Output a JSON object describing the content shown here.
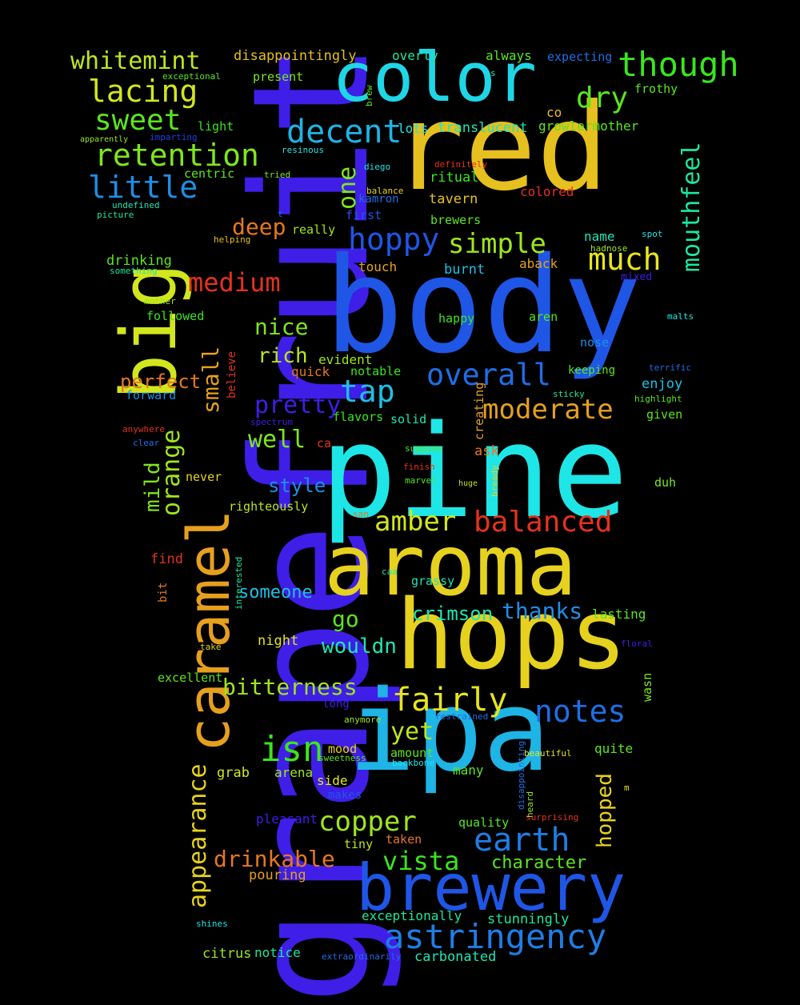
{
  "background": "#000000",
  "words": [
    {
      "text": "grapefruit",
      "color": "#3f1ee8",
      "vertical": true
    },
    {
      "text": "body",
      "color": "#1f56e6",
      "vertical": false
    },
    {
      "text": "pine",
      "color": "#1ee6e6",
      "vertical": false
    },
    {
      "text": "red",
      "color": "#e6c01e",
      "vertical": false
    },
    {
      "text": "ipa",
      "color": "#1eb4e6",
      "vertical": false
    },
    {
      "text": "hops",
      "color": "#e6d21e",
      "vertical": false
    },
    {
      "text": "aroma",
      "color": "#e6d21e",
      "vertical": false
    },
    {
      "text": "color",
      "color": "#1ed6e6",
      "vertical": false
    },
    {
      "text": "big",
      "color": "#d2e61e",
      "vertical": true
    },
    {
      "text": "caramel",
      "color": "#e6a01e",
      "vertical": true
    },
    {
      "text": "brewery",
      "color": "#1f56e6",
      "vertical": false
    },
    {
      "text": "astringency",
      "color": "#1f7ee6",
      "vertical": false
    },
    {
      "text": "though",
      "color": "#3ae61e",
      "vertical": false
    },
    {
      "text": "retention",
      "color": "#7ee61e",
      "vertical": false
    },
    {
      "text": "decent",
      "color": "#1eb4e6",
      "vertical": false
    },
    {
      "text": "lacing",
      "color": "#d2e61e",
      "vertical": false
    },
    {
      "text": "whitemint",
      "color": "#bee61e",
      "vertical": false
    },
    {
      "text": "sweet",
      "color": "#5ae61e",
      "vertical": false
    },
    {
      "text": "little",
      "color": "#1f8ee6",
      "vertical": false
    },
    {
      "text": "dry",
      "color": "#5ae61e",
      "vertical": false
    },
    {
      "text": "hoppy",
      "color": "#1f56e6",
      "vertical": false
    },
    {
      "text": "simple",
      "color": "#9ee61e",
      "vertical": false
    },
    {
      "text": "much",
      "color": "#e6e61e",
      "vertical": false
    },
    {
      "text": "medium",
      "color": "#e6321e",
      "vertical": false
    },
    {
      "text": "mouthfeel",
      "color": "#1ee69e",
      "vertical": true
    },
    {
      "text": "overall",
      "color": "#1f6ee6",
      "vertical": false
    },
    {
      "text": "tap",
      "color": "#1ec0e6",
      "vertical": false
    },
    {
      "text": "moderate",
      "color": "#e6a01e",
      "vertical": false
    },
    {
      "text": "pretty",
      "color": "#3f1ee8",
      "vertical": false
    },
    {
      "text": "nice",
      "color": "#7ee61e",
      "vertical": false
    },
    {
      "text": "rich",
      "color": "#bee61e",
      "vertical": false
    },
    {
      "text": "perfect",
      "color": "#e6781e",
      "vertical": false
    },
    {
      "text": "deep",
      "color": "#e6781e",
      "vertical": false
    },
    {
      "text": "one",
      "color": "#7ee61e",
      "vertical": true
    },
    {
      "text": "small",
      "color": "#e6a01e",
      "vertical": true
    },
    {
      "text": "orange",
      "color": "#9ee61e",
      "vertical": true
    },
    {
      "text": "mild",
      "color": "#7ee61e",
      "vertical": true
    },
    {
      "text": "well",
      "color": "#7ee61e",
      "vertical": false
    },
    {
      "text": "style",
      "color": "#1f8ee6",
      "vertical": false
    },
    {
      "text": "amber",
      "color": "#d2e61e",
      "vertical": false
    },
    {
      "text": "balanced",
      "color": "#e6321e",
      "vertical": false
    },
    {
      "text": "appearance",
      "color": "#e6d21e",
      "vertical": true
    },
    {
      "text": "someone",
      "color": "#1ec0e6",
      "vertical": false
    },
    {
      "text": "go",
      "color": "#5ae61e",
      "vertical": false
    },
    {
      "text": "crimson",
      "color": "#1ee6b4",
      "vertical": false
    },
    {
      "text": "thanks",
      "color": "#1f8ee6",
      "vertical": false
    },
    {
      "text": "wouldn",
      "color": "#1ee6b4",
      "vertical": false
    },
    {
      "text": "bitterness",
      "color": "#9ee61e",
      "vertical": false
    },
    {
      "text": "fairly",
      "color": "#e6e61e",
      "vertical": false
    },
    {
      "text": "notes",
      "color": "#1f6ee6",
      "vertical": false
    },
    {
      "text": "yet",
      "color": "#bee61e",
      "vertical": false
    },
    {
      "text": "isn",
      "color": "#3ae61e",
      "vertical": false
    },
    {
      "text": "copper",
      "color": "#9ee61e",
      "vertical": false
    },
    {
      "text": "earth",
      "color": "#1f7ee6",
      "vertical": false
    },
    {
      "text": "hopped",
      "color": "#e6d21e",
      "vertical": true
    },
    {
      "text": "drinkable",
      "color": "#e6781e",
      "vertical": false
    },
    {
      "text": "vista",
      "color": "#3ae61e",
      "vertical": false
    },
    {
      "text": "character",
      "color": "#5ae61e",
      "vertical": false
    },
    {
      "text": "disappointingly",
      "color": "#e6c01e",
      "vertical": false
    },
    {
      "text": "overly",
      "color": "#1ee69e",
      "vertical": false
    },
    {
      "text": "always",
      "color": "#5ae61e",
      "vertical": false
    },
    {
      "text": "expecting",
      "color": "#1f6ee6",
      "vertical": false
    },
    {
      "text": "present",
      "color": "#7ee61e",
      "vertical": false
    },
    {
      "text": "exceptional",
      "color": "#5ae61e",
      "vertical": false
    },
    {
      "text": "brew",
      "color": "#5ae61e",
      "vertical": true
    },
    {
      "text": "s",
      "color": "#1ee6b4",
      "vertical": false
    },
    {
      "text": "frothy",
      "color": "#5ae61e",
      "vertical": false
    },
    {
      "text": "co",
      "color": "#e6c01e",
      "vertical": false
    },
    {
      "text": "light",
      "color": "#3ae61e",
      "vertical": false
    },
    {
      "text": "lots",
      "color": "#1ee6e6",
      "vertical": false
    },
    {
      "text": "translucent",
      "color": "#1ee6b4",
      "vertical": false
    },
    {
      "text": "growlermother",
      "color": "#5ae61e",
      "vertical": false
    },
    {
      "text": "apparently",
      "color": "#9ee61e",
      "vertical": false
    },
    {
      "text": "imparting",
      "color": "#1f3ee6",
      "vertical": false
    },
    {
      "text": "resinous",
      "color": "#1ee6e6",
      "vertical": false
    },
    {
      "text": "centric",
      "color": "#5ae61e",
      "vertical": false
    },
    {
      "text": "tried",
      "color": "#7ee61e",
      "vertical": false
    },
    {
      "text": "diego",
      "color": "#1ee6e6",
      "vertical": false
    },
    {
      "text": "ritual",
      "color": "#3ae61e",
      "vertical": false
    },
    {
      "text": "definitely",
      "color": "#e6321e",
      "vertical": false
    },
    {
      "text": "undefined",
      "color": "#1ee6b4",
      "vertical": false
    },
    {
      "text": "balance",
      "color": "#e6d21e",
      "vertical": false
    },
    {
      "text": "kamron",
      "color": "#1f6ee6",
      "vertical": false
    },
    {
      "text": "colored",
      "color": "#e6321e",
      "vertical": false
    },
    {
      "text": "tavern",
      "color": "#e6c01e",
      "vertical": false
    },
    {
      "text": "picture",
      "color": "#1ee69e",
      "vertical": false
    },
    {
      "text": "t",
      "color": "#1f6ee6",
      "vertical": false
    },
    {
      "text": "first",
      "color": "#1f56e6",
      "vertical": false
    },
    {
      "text": "brewers",
      "color": "#5ae61e",
      "vertical": false
    },
    {
      "text": "really",
      "color": "#9ee61e",
      "vertical": false
    },
    {
      "text": "name",
      "color": "#1ee6b4",
      "vertical": false
    },
    {
      "text": "spot",
      "color": "#1ee6e6",
      "vertical": false
    },
    {
      "text": "helping",
      "color": "#e6c01e",
      "vertical": false
    },
    {
      "text": "hadnose",
      "color": "#9ee61e",
      "vertical": false
    },
    {
      "text": "drinking",
      "color": "#5ae61e",
      "vertical": false
    },
    {
      "text": "something",
      "color": "#1ee69e",
      "vertical": false
    },
    {
      "text": "touch",
      "color": "#e6a01e",
      "vertical": false
    },
    {
      "text": "burnt",
      "color": "#1ec0e6",
      "vertical": false
    },
    {
      "text": "aback",
      "color": "#e6a01e",
      "vertical": false
    },
    {
      "text": "mixed",
      "color": "#3f1ee8",
      "vertical": false
    },
    {
      "text": "mother",
      "color": "#9ee61e",
      "vertical": false
    },
    {
      "text": "followed",
      "color": "#3ae61e",
      "vertical": false
    },
    {
      "text": "happy",
      "color": "#3ae61e",
      "vertical": false
    },
    {
      "text": "aren",
      "color": "#5ae61e",
      "vertical": false
    },
    {
      "text": "malts",
      "color": "#1ee6e6",
      "vertical": false
    },
    {
      "text": "nose",
      "color": "#1f8ee6",
      "vertical": false
    },
    {
      "text": "evident",
      "color": "#9ee61e",
      "vertical": false
    },
    {
      "text": "quick",
      "color": "#e6781e",
      "vertical": false
    },
    {
      "text": "notable",
      "color": "#3ae61e",
      "vertical": false
    },
    {
      "text": "keeping",
      "color": "#5ae61e",
      "vertical": false
    },
    {
      "text": "terrific",
      "color": "#1f6ee6",
      "vertical": false
    },
    {
      "text": "believe",
      "color": "#e6321e",
      "vertical": true
    },
    {
      "text": "enjoy",
      "color": "#1ec0e6",
      "vertical": false
    },
    {
      "text": "forward",
      "color": "#1f8ee6",
      "vertical": false
    },
    {
      "text": "sticky",
      "color": "#1ee69e",
      "vertical": false
    },
    {
      "text": "highlight",
      "color": "#5ae61e",
      "vertical": false
    },
    {
      "text": "creating",
      "color": "#e6a01e",
      "vertical": true
    },
    {
      "text": "flavors",
      "color": "#3ae61e",
      "vertical": false
    },
    {
      "text": "solid",
      "color": "#1ee6b4",
      "vertical": false
    },
    {
      "text": "given",
      "color": "#5ae61e",
      "vertical": false
    },
    {
      "text": "anywhere",
      "color": "#e6321e",
      "vertical": false
    },
    {
      "text": "spectrum",
      "color": "#3f1ee8",
      "vertical": false
    },
    {
      "text": "clear",
      "color": "#1f6ee6",
      "vertical": false
    },
    {
      "text": "ca",
      "color": "#e6321e",
      "vertical": false
    },
    {
      "text": "suppose",
      "color": "#5ae61e",
      "vertical": false
    },
    {
      "text": "ask",
      "color": "#e6781e",
      "vertical": false
    },
    {
      "text": "finish",
      "color": "#e6321e",
      "vertical": false
    },
    {
      "text": "bready",
      "color": "#e6d21e",
      "vertical": true
    },
    {
      "text": "never",
      "color": "#e6d21e",
      "vertical": false
    },
    {
      "text": "marvel",
      "color": "#5ae61e",
      "vertical": false
    },
    {
      "text": "huge",
      "color": "#bee61e",
      "vertical": false
    },
    {
      "text": "duh",
      "color": "#7ee61e",
      "vertical": false
    },
    {
      "text": "righteously",
      "color": "#bee61e",
      "vertical": false
    },
    {
      "text": "san",
      "color": "#e6781e",
      "vertical": false
    },
    {
      "text": "find",
      "color": "#e6321e",
      "vertical": false
    },
    {
      "text": "interested",
      "color": "#1ee69e",
      "vertical": true
    },
    {
      "text": "caa",
      "color": "#1ee6b4",
      "vertical": false
    },
    {
      "text": "grassy",
      "color": "#1ee6b4",
      "vertical": false
    },
    {
      "text": "bit",
      "color": "#e6781e",
      "vertical": true
    },
    {
      "text": "lasting",
      "color": "#5ae61e",
      "vertical": false
    },
    {
      "text": "night",
      "color": "#e6e61e",
      "vertical": false
    },
    {
      "text": "take",
      "color": "#e6d21e",
      "vertical": false
    },
    {
      "text": "floral",
      "color": "#3f1ee8",
      "vertical": false
    },
    {
      "text": "excellent",
      "color": "#5ae61e",
      "vertical": false
    },
    {
      "text": "wasn",
      "color": "#7ee61e",
      "vertical": true
    },
    {
      "text": "long",
      "color": "#3f1ee8",
      "vertical": false
    },
    {
      "text": "anymore",
      "color": "#9ee61e",
      "vertical": false
    },
    {
      "text": "restrained",
      "color": "#1f6ee6",
      "vertical": false
    },
    {
      "text": "mood",
      "color": "#e6d21e",
      "vertical": false
    },
    {
      "text": "amount",
      "color": "#5ae61e",
      "vertical": false
    },
    {
      "text": "disappointing",
      "color": "#1f6ee6",
      "vertical": true
    },
    {
      "text": "beautiful",
      "color": "#e6e61e",
      "vertical": false
    },
    {
      "text": "quite",
      "color": "#5ae61e",
      "vertical": false
    },
    {
      "text": "sweetness",
      "color": "#5ae61e",
      "vertical": false
    },
    {
      "text": "backbone",
      "color": "#1ee6e6",
      "vertical": false
    },
    {
      "text": "grab",
      "color": "#d2e61e",
      "vertical": false
    },
    {
      "text": "arena",
      "color": "#9ee61e",
      "vertical": false
    },
    {
      "text": "many",
      "color": "#5ae61e",
      "vertical": false
    },
    {
      "text": "m",
      "color": "#e6e61e",
      "vertical": false
    },
    {
      "text": "side",
      "color": "#e6e61e",
      "vertical": false
    },
    {
      "text": "makes",
      "color": "#1f56e6",
      "vertical": false
    },
    {
      "text": "heard",
      "color": "#9ee61e",
      "vertical": true
    },
    {
      "text": "pleasant",
      "color": "#3f1ee8",
      "vertical": false
    },
    {
      "text": "quality",
      "color": "#5ae61e",
      "vertical": false
    },
    {
      "text": "surprising",
      "color": "#e6321e",
      "vertical": false
    },
    {
      "text": "tiny",
      "color": "#bee61e",
      "vertical": false
    },
    {
      "text": "taken",
      "color": "#e6781e",
      "vertical": false
    },
    {
      "text": "pouring",
      "color": "#e6a01e",
      "vertical": false
    },
    {
      "text": "exceptionally",
      "color": "#1ee69e",
      "vertical": false
    },
    {
      "text": "stunningly",
      "color": "#1ee69e",
      "vertical": false
    },
    {
      "text": "shines",
      "color": "#1ee6e6",
      "vertical": false
    },
    {
      "text": "citrus",
      "color": "#9ee61e",
      "vertical": false
    },
    {
      "text": "notice",
      "color": "#1ee69e",
      "vertical": false
    },
    {
      "text": "extraordinarily",
      "color": "#1f6ee6",
      "vertical": false
    },
    {
      "text": "carbonated",
      "color": "#1ee6b4",
      "vertical": false
    }
  ]
}
